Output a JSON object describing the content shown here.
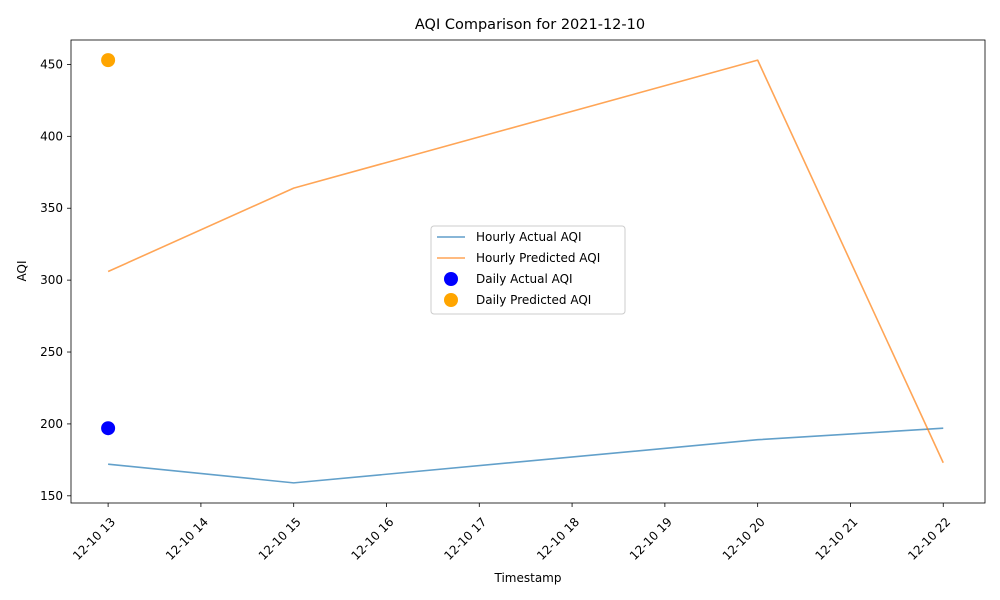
{
  "chart_data": {
    "type": "line",
    "title": "AQI Comparison for 2021-12-10",
    "xlabel": "Timestamp",
    "ylabel": "AQI",
    "x_ticks": [
      "12-10 13",
      "12-10 14",
      "12-10 15",
      "12-10 16",
      "12-10 17",
      "12-10 18",
      "12-10 19",
      "12-10 20",
      "12-10 21",
      "12-10 22"
    ],
    "xlim": [
      "2021-12-10 12:36",
      "2021-12-10 22:27"
    ],
    "ylim": [
      145,
      467
    ],
    "y_ticks": [
      150,
      200,
      250,
      300,
      350,
      400,
      450
    ],
    "grid": false,
    "legend_position": "center",
    "series": [
      {
        "name": "Hourly Actual AQI",
        "kind": "line",
        "color": "#1f77b4",
        "points": [
          {
            "x": "2021-12-10 13:00",
            "y": 172
          },
          {
            "x": "2021-12-10 15:00",
            "y": 159
          },
          {
            "x": "2021-12-10 20:00",
            "y": 189
          },
          {
            "x": "2021-12-10 22:00",
            "y": 197
          }
        ]
      },
      {
        "name": "Hourly Predicted AQI",
        "kind": "line",
        "color": "#ff7f0e",
        "points": [
          {
            "x": "2021-12-10 13:00",
            "y": 306
          },
          {
            "x": "2021-12-10 15:00",
            "y": 364
          },
          {
            "x": "2021-12-10 20:00",
            "y": 453
          },
          {
            "x": "2021-12-10 22:00",
            "y": 173
          }
        ]
      },
      {
        "name": "Daily Actual AQI",
        "kind": "scatter",
        "color": "#0000ff",
        "points": [
          {
            "x": "2021-12-10 13:00",
            "y": 197
          }
        ]
      },
      {
        "name": "Daily Predicted AQI",
        "kind": "scatter",
        "color": "#ffa500",
        "points": [
          {
            "x": "2021-12-10 13:00",
            "y": 453
          }
        ]
      }
    ]
  }
}
